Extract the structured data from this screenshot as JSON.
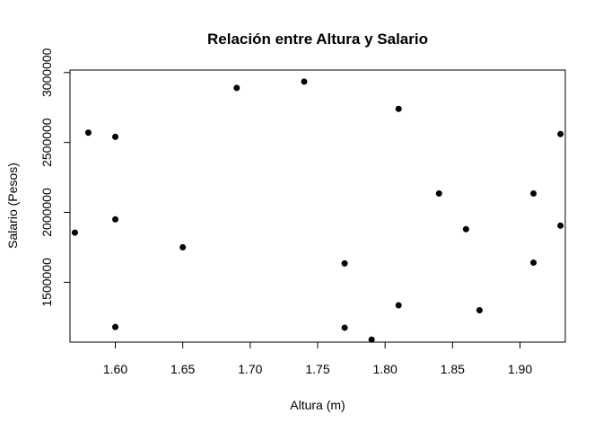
{
  "chart_data": {
    "type": "scatter",
    "title": "Relación entre Altura y Salario",
    "xlabel": "Altura (m)",
    "ylabel": "Salario (Pesos)",
    "xlim": [
      1.5664,
      1.9336
    ],
    "ylim": [
      1072000,
      3018000
    ],
    "xticks": [
      1.6,
      1.65,
      1.7,
      1.75,
      1.8,
      1.85,
      1.9
    ],
    "xtick_labels": [
      "1.60",
      "1.65",
      "1.70",
      "1.75",
      "1.80",
      "1.85",
      "1.90"
    ],
    "yticks": [
      1500000,
      2000000,
      2500000,
      3000000
    ],
    "ytick_labels": [
      "1500000",
      "2000000",
      "2500000",
      "3000000"
    ],
    "grid": false,
    "marker_color": "#000000",
    "points": [
      {
        "x": 1.57,
        "y": 1855000
      },
      {
        "x": 1.58,
        "y": 2570000
      },
      {
        "x": 1.6,
        "y": 2540000
      },
      {
        "x": 1.6,
        "y": 1950000
      },
      {
        "x": 1.6,
        "y": 1180000
      },
      {
        "x": 1.65,
        "y": 1750000
      },
      {
        "x": 1.69,
        "y": 2890000
      },
      {
        "x": 1.74,
        "y": 2935000
      },
      {
        "x": 1.77,
        "y": 1635000
      },
      {
        "x": 1.77,
        "y": 1175000
      },
      {
        "x": 1.79,
        "y": 1090000
      },
      {
        "x": 1.81,
        "y": 2740000
      },
      {
        "x": 1.81,
        "y": 1335000
      },
      {
        "x": 1.84,
        "y": 2135000
      },
      {
        "x": 1.86,
        "y": 1880000
      },
      {
        "x": 1.87,
        "y": 1300000
      },
      {
        "x": 1.91,
        "y": 2135000
      },
      {
        "x": 1.91,
        "y": 1640000
      },
      {
        "x": 1.93,
        "y": 2560000
      },
      {
        "x": 1.93,
        "y": 1905000
      }
    ]
  }
}
